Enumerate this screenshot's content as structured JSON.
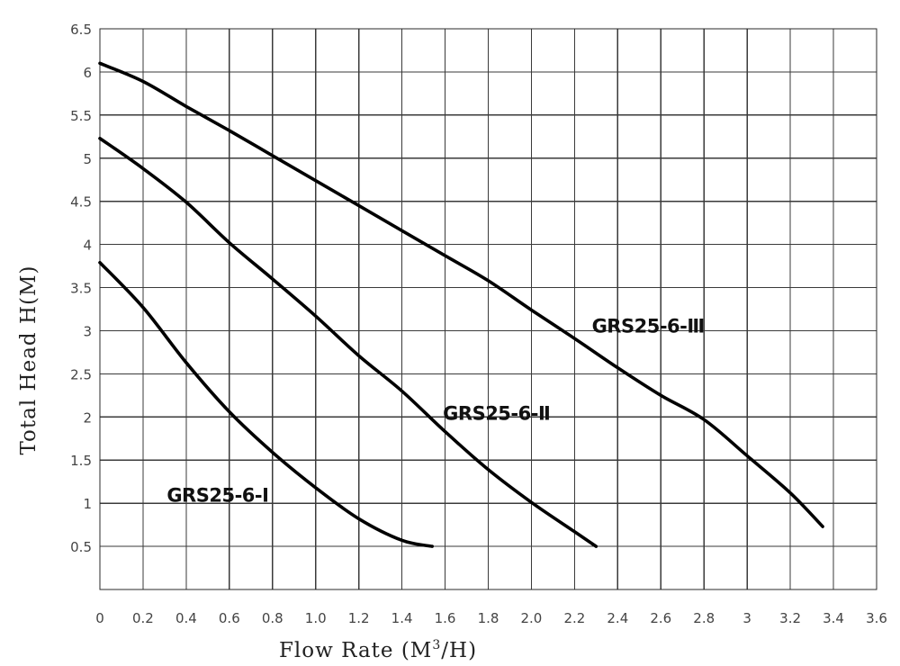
{
  "chart_data": {
    "type": "line",
    "title": "",
    "xlabel": "Flow Rate (M³/H)",
    "ylabel": "Total Head H(M)",
    "xlim": [
      0,
      3.6
    ],
    "ylim": [
      0,
      6.5
    ],
    "grid": true,
    "legend": "inline labels",
    "x_ticks": [
      "0",
      "0.2",
      "0.4",
      "0.6",
      "0.8",
      "1.0",
      "1.2",
      "1.4",
      "1.6",
      "1.8",
      "2.0",
      "2.2",
      "2.4",
      "2.6",
      "2.8",
      "3",
      "3.2",
      "3.4",
      "3.6"
    ],
    "y_ticks": [
      "0.5",
      "1",
      "1.5",
      "2",
      "2.5",
      "3",
      "3.5",
      "4",
      "4.5",
      "5",
      "5.5",
      "6",
      "6.5"
    ],
    "series": [
      {
        "name": "GRS25-6-Ⅰ",
        "label_pos": [
          0.31,
          1.1
        ],
        "points": [
          [
            0,
            3.79
          ],
          [
            0.2,
            3.27
          ],
          [
            0.4,
            2.63
          ],
          [
            0.6,
            2.06
          ],
          [
            0.8,
            1.59
          ],
          [
            1.0,
            1.18
          ],
          [
            1.2,
            0.82
          ],
          [
            1.4,
            0.57
          ],
          [
            1.54,
            0.5
          ]
        ]
      },
      {
        "name": "GRS25-6-Ⅱ",
        "label_pos": [
          1.59,
          2.05
        ],
        "points": [
          [
            0,
            5.23
          ],
          [
            0.2,
            4.88
          ],
          [
            0.4,
            4.49
          ],
          [
            0.6,
            4.02
          ],
          [
            0.8,
            3.6
          ],
          [
            1.0,
            3.17
          ],
          [
            1.2,
            2.71
          ],
          [
            1.4,
            2.3
          ],
          [
            1.6,
            1.83
          ],
          [
            1.8,
            1.39
          ],
          [
            2.0,
            1.01
          ],
          [
            2.2,
            0.67
          ],
          [
            2.3,
            0.5
          ]
        ]
      },
      {
        "name": "GRS25-6-Ⅲ",
        "label_pos": [
          2.28,
          3.06
        ],
        "points": [
          [
            0,
            6.1
          ],
          [
            0.2,
            5.89
          ],
          [
            0.4,
            5.6
          ],
          [
            0.6,
            5.32
          ],
          [
            0.8,
            5.03
          ],
          [
            1.0,
            4.74
          ],
          [
            1.2,
            4.45
          ],
          [
            1.4,
            4.16
          ],
          [
            1.6,
            3.87
          ],
          [
            1.8,
            3.58
          ],
          [
            2.0,
            3.24
          ],
          [
            2.2,
            2.91
          ],
          [
            2.4,
            2.57
          ],
          [
            2.6,
            2.25
          ],
          [
            2.8,
            1.97
          ],
          [
            3.0,
            1.55
          ],
          [
            3.2,
            1.12
          ],
          [
            3.35,
            0.73
          ]
        ]
      }
    ]
  },
  "labels": {
    "xlabel_prefix": "Flow Rate (M",
    "xlabel_sup": "3",
    "xlabel_suffix": "/H)",
    "ylabel": "Total Head H(M)"
  },
  "colors": {
    "curve": "#000000",
    "grid": "#3a3a3a",
    "background": "#ffffff"
  }
}
